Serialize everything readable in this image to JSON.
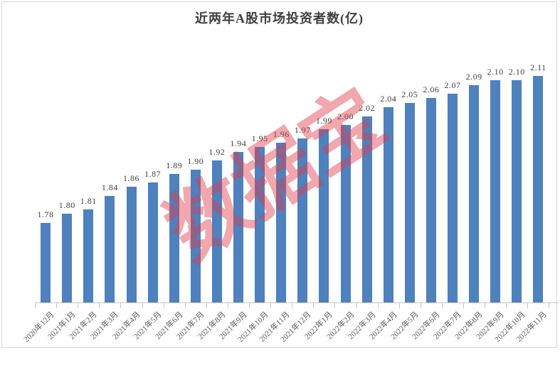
{
  "chart_data": {
    "type": "bar",
    "title": "近两年A股市场投资者数(亿)",
    "categories": [
      "2020年12月",
      "2021年1月",
      "2021年2月",
      "2021年3月",
      "2021年4月",
      "2021年5月",
      "2021年6月",
      "2021年7月",
      "2021年8月",
      "2021年9月",
      "2021年10月",
      "2021年11月",
      "2021年12月",
      "2022年1月",
      "2022年2月",
      "2022年3月",
      "2022年4月",
      "2022年5月",
      "2022年6月",
      "2022年7月",
      "2022年8月",
      "2022年9月",
      "2022年10月",
      "2022年11月"
    ],
    "values": [
      1.78,
      1.8,
      1.81,
      1.84,
      1.86,
      1.87,
      1.89,
      1.9,
      1.92,
      1.94,
      1.95,
      1.96,
      1.97,
      1.99,
      2.0,
      2.02,
      2.04,
      2.05,
      2.06,
      2.07,
      2.09,
      2.1,
      2.1,
      2.11
    ],
    "value_label_decimals": 2,
    "xlabel": "",
    "ylabel": "",
    "ylim": [
      1.6,
      2.15
    ],
    "y_axis": "hidden",
    "grid": "off",
    "legend": "none",
    "x_tick_label_rotation_deg": 45,
    "bar_color": "#4e81bd",
    "axis_color": "#c6c6c6",
    "title_color": "#3f3f3f",
    "value_label_color": "#3f3f3f",
    "tick_label_color": "#595959",
    "frame_border_color": "#d9d9d9"
  },
  "watermark": {
    "text": "数据宝",
    "color": "#de3c4b",
    "opacity": 0.45,
    "rotation_deg": -33
  }
}
